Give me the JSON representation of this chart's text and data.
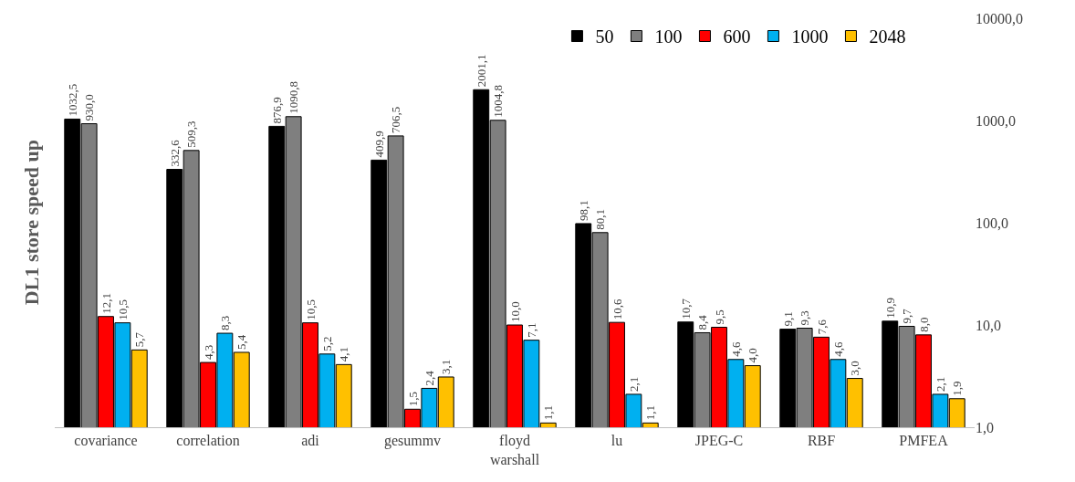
{
  "chart_data": {
    "type": "bar",
    "ylabel": "DL1 store speed up",
    "categories": [
      "covariance",
      "correlation",
      "adi",
      "gesummv",
      "floyd warshall",
      "lu",
      "JPEG-C",
      "RBF",
      "PMFEA"
    ],
    "series": [
      {
        "name": "50",
        "color": "#000000",
        "values": [
          1032.5,
          332.6,
          876.9,
          409.9,
          2001.1,
          98.1,
          10.7,
          9.1,
          10.9
        ],
        "value_labels": [
          "1032,5",
          "332,6",
          "876,9",
          "409,9",
          "2001,1",
          "98,1",
          "10,7",
          "9,1",
          "10,9"
        ]
      },
      {
        "name": "100",
        "color": "#7f7f7f",
        "values": [
          930.0,
          509.3,
          1090.8,
          706.5,
          1004.8,
          80.1,
          8.4,
          9.3,
          9.7
        ],
        "value_labels": [
          "930,0",
          "509,3",
          "1090,8",
          "706,5",
          "1004,8",
          "80,1",
          "8,4",
          "9,3",
          "9,7"
        ]
      },
      {
        "name": "600",
        "color": "#ff0000",
        "values": [
          12.1,
          4.3,
          10.5,
          1.5,
          10.0,
          10.6,
          9.5,
          7.6,
          8.0
        ],
        "value_labels": [
          "12,1",
          "4,3",
          "10,5",
          "1,5",
          "10,0",
          "10,6",
          "9,5",
          "7,6",
          "8,0"
        ]
      },
      {
        "name": "1000",
        "color": "#00b0f0",
        "values": [
          10.5,
          8.3,
          5.2,
          2.4,
          7.1,
          2.1,
          4.6,
          4.6,
          2.1
        ],
        "value_labels": [
          "10,5",
          "8,3",
          "5,2",
          "2,4",
          "7,1",
          "2,1",
          "4,6",
          "4,6",
          "2,1"
        ]
      },
      {
        "name": "2048",
        "color": "#ffc000",
        "values": [
          5.7,
          5.4,
          4.1,
          3.1,
          1.1,
          1.1,
          4.0,
          3.0,
          1.9
        ],
        "value_labels": [
          "5,7",
          "5,4",
          "4,1",
          "3,1",
          "1,1",
          "1,1",
          "4,0",
          "3,0",
          "1,9"
        ]
      }
    ],
    "log": "y",
    "ylim": [
      1,
      10000
    ],
    "yticks": [
      {
        "value": 1,
        "label": "1,0"
      },
      {
        "value": 10,
        "label": "10,0"
      },
      {
        "value": 100,
        "label": "100,0"
      },
      {
        "value": 1000,
        "label": "1000,0"
      },
      {
        "value": 10000,
        "label": "10000,0"
      }
    ],
    "legend": "top right"
  }
}
